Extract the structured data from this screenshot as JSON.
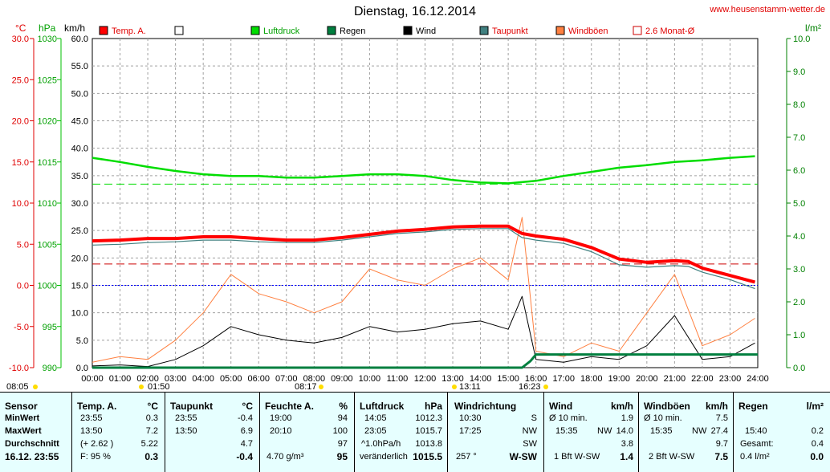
{
  "page": {
    "title": "Dienstag, 16.12.2014",
    "site": "www.heusenstamm-wetter.de",
    "colors": {
      "temp": "#ff0000",
      "pressure": "#00dd00",
      "rain": "#007f3f",
      "wind": "#000000",
      "dewpoint": "#408080",
      "gusts": "#ff8040",
      "avg2m": "#cc0000",
      "dotted_zero": "#0000ff",
      "table_bg": "#e6ffff",
      "sunrise": "#ffdd00"
    }
  },
  "axes": {
    "temp_unit": "°C",
    "pressure_unit": "hPa",
    "wind_unit": "km/h",
    "rain_unit": "l/m²",
    "temp_ticks": [
      "30.0",
      "25.0",
      "20.0",
      "15.0",
      "10.0",
      "5.0",
      "0.0",
      "-5.0",
      "-10.0"
    ],
    "pressure_ticks": [
      "1030",
      "1025",
      "1020",
      "1015",
      "1010",
      "1005",
      "1000",
      "995",
      "990"
    ],
    "wind_ticks": [
      "60.0",
      "55.0",
      "50.0",
      "45.0",
      "40.0",
      "35.0",
      "30.0",
      "25.0",
      "20.0",
      "15.0",
      "10.0",
      "5.0",
      "0.0"
    ],
    "rain_ticks": [
      "10.0",
      "9.0",
      "8.0",
      "7.0",
      "6.0",
      "5.0",
      "4.0",
      "3.0",
      "2.0",
      "1.0",
      "0.0"
    ],
    "x_ticks": [
      "00:00",
      "01:00",
      "02:00",
      "03:00",
      "04:00",
      "05:00",
      "06:00",
      "07:00",
      "08:00",
      "09:00",
      "10:00",
      "11:00",
      "12:00",
      "13:00",
      "14:00",
      "15:00",
      "16:00",
      "17:00",
      "18:00",
      "19:00",
      "20:00",
      "21:00",
      "22:00",
      "23:00",
      "24:00"
    ]
  },
  "legend": {
    "temp": "Temp. A.",
    "empty": "",
    "pressure": "Luftdruck",
    "rain": "Regen",
    "wind": "Wind",
    "dewpoint": "Taupunkt",
    "gusts": "Windböen",
    "avg2m": "2.6 Monat-Ø"
  },
  "markers": {
    "m1": "08:05",
    "m2": "01:50",
    "m3": "08:17",
    "m4": "13:11",
    "m5": "16:23"
  },
  "chart_data": {
    "type": "line",
    "x_unit": "hour",
    "x_range": [
      0,
      24
    ],
    "temp_range": [
      -10,
      30
    ],
    "wind_range": [
      0,
      60
    ],
    "pressure_range": [
      990,
      1030
    ],
    "rain_range": [
      0,
      10
    ],
    "temp_avg_2m": 2.6,
    "pressure_ref": 1012.3,
    "series": [
      {
        "name": "Temp. A.",
        "unit": "°C",
        "x": [
          0,
          1,
          2,
          3,
          4,
          5,
          6,
          7,
          8,
          9,
          10,
          11,
          12,
          13,
          14,
          15,
          15.5,
          16,
          17,
          18,
          19,
          20,
          21,
          21.5,
          22,
          23,
          23.9
        ],
        "y": [
          5.4,
          5.5,
          5.7,
          5.7,
          5.9,
          5.9,
          5.7,
          5.5,
          5.5,
          5.8,
          6.2,
          6.6,
          6.8,
          7.1,
          7.2,
          7.2,
          6.3,
          6.0,
          5.6,
          4.6,
          3.2,
          2.8,
          3.0,
          2.9,
          2.1,
          1.2,
          0.4
        ]
      },
      {
        "name": "Taupunkt",
        "unit": "°C",
        "x": [
          0,
          1,
          2,
          3,
          4,
          5,
          6,
          7,
          8,
          9,
          10,
          11,
          12,
          13,
          14,
          15,
          15.5,
          16,
          17,
          18,
          19,
          20,
          21,
          21.5,
          22,
          23,
          23.9
        ],
        "y": [
          4.9,
          5.0,
          5.2,
          5.3,
          5.5,
          5.5,
          5.3,
          5.2,
          5.2,
          5.5,
          5.9,
          6.3,
          6.5,
          6.8,
          6.9,
          6.9,
          5.8,
          5.5,
          5.1,
          4.1,
          2.5,
          2.2,
          2.4,
          2.3,
          1.6,
          0.7,
          -0.4
        ]
      },
      {
        "name": "Luftdruck",
        "unit": "hPa",
        "x": [
          0,
          1,
          2,
          3,
          4,
          5,
          6,
          7,
          8,
          9,
          10,
          11,
          12,
          13,
          14,
          15,
          16,
          17,
          18,
          19,
          20,
          21,
          22,
          23,
          23.9
        ],
        "y": [
          1015.5,
          1015.0,
          1014.4,
          1013.9,
          1013.5,
          1013.3,
          1013.3,
          1013.1,
          1013.1,
          1013.3,
          1013.5,
          1013.5,
          1013.3,
          1012.8,
          1012.5,
          1012.4,
          1012.7,
          1013.3,
          1013.8,
          1014.3,
          1014.6,
          1015.0,
          1015.2,
          1015.5,
          1015.7
        ]
      },
      {
        "name": "Wind",
        "unit": "km/h",
        "x": [
          0,
          1,
          2,
          3,
          4,
          5,
          6,
          7,
          8,
          9,
          10,
          11,
          12,
          13,
          14,
          15,
          15.5,
          16,
          17,
          18,
          19,
          20,
          21,
          22,
          23,
          23.9
        ],
        "y": [
          0.3,
          0.5,
          0.2,
          1.5,
          4.0,
          7.5,
          6.0,
          5.0,
          4.5,
          5.5,
          7.5,
          6.5,
          7.0,
          8.0,
          8.5,
          7.0,
          13.0,
          1.5,
          1.0,
          2.0,
          1.5,
          4.0,
          9.5,
          1.5,
          2.0,
          4.5
        ]
      },
      {
        "name": "Windböen",
        "unit": "km/h",
        "x": [
          0,
          1,
          2,
          3,
          4,
          5,
          6,
          7,
          8,
          9,
          10,
          11,
          12,
          13,
          14,
          15,
          15.5,
          16,
          17,
          18,
          19,
          20,
          21,
          22,
          23,
          23.9
        ],
        "y": [
          1.0,
          2.0,
          1.5,
          5.0,
          10.0,
          17.0,
          13.5,
          12.0,
          10.0,
          12.0,
          18.0,
          16.0,
          15.0,
          18.0,
          20.0,
          16.0,
          27.4,
          3.0,
          2.0,
          4.5,
          3.0,
          10.0,
          17.0,
          4.0,
          6.0,
          9.0
        ]
      },
      {
        "name": "Regen",
        "unit": "l/m²",
        "x": [
          0,
          15.5,
          15.8,
          16.0,
          20,
          24
        ],
        "y": [
          0,
          0,
          0.2,
          0.4,
          0.4,
          0.4
        ]
      }
    ]
  },
  "table": {
    "sensor": {
      "h": "Sensor",
      "min": "MinWert",
      "max": "MaxWert",
      "avg": "Durchschnitt",
      "now": "16.12. 23:55"
    },
    "temp": {
      "h1": "Temp. A.",
      "h2": "°C",
      "min_t": "23:55",
      "min_v": "0.3",
      "max_t": "13:50",
      "max_v": "7.2",
      "avg_t": "(+ 2.62 )",
      "avg_v": "5.22",
      "now_t": "F: 95 %",
      "now_v": "0.3"
    },
    "dew": {
      "h1": "Taupunkt",
      "h2": "°C",
      "min_t": "23:55",
      "min_v": "-0.4",
      "max_t": "13:50",
      "max_v": "6.9",
      "avg_v": "4.7",
      "now_v": "-0.4"
    },
    "hum": {
      "h1": "Feuchte A.",
      "h2": "%",
      "min_t": "19:00",
      "min_v": "94",
      "max_t": "20:10",
      "max_v": "100",
      "avg_v": "97",
      "now_t": "4.70 g/m³",
      "now_v": "95"
    },
    "press": {
      "h1": "Luftdruck",
      "h2": "hPa",
      "min_t": "14:05",
      "min_v": "1012.3",
      "max_t": "23:05",
      "max_v": "1015.7",
      "avg_t": "^1.0hPa/h",
      "avg_v": "1013.8",
      "now_t": "veränderlich",
      "now_v": "1015.5"
    },
    "wdir": {
      "h1": "Windrichtung",
      "min_t": "10:30",
      "min_v": "S",
      "max_t": "17:25",
      "max_v": "NW",
      "avg_v": "SW",
      "now_t": "257 °",
      "now_v": "W-SW"
    },
    "wind": {
      "h1": "Wind",
      "h2": "km/h",
      "min_t": "Ø 10 min.",
      "min_v": "1.9",
      "max_t": "15:35",
      "max_d": "NW",
      "max_v": "14.0",
      "avg_v": "3.8",
      "now_t": "1 Bft W-SW",
      "now_v": "1.4"
    },
    "gust": {
      "h1": "Windböen",
      "h2": "km/h",
      "min_t": "Ø 10 min.",
      "min_v": "7.5",
      "max_t": "15:35",
      "max_d": "NW",
      "max_v": "27.4",
      "avg_v": "9.7",
      "now_t": "2 Bft W-SW",
      "now_v": "7.5"
    },
    "rain": {
      "h1": "Regen",
      "h2": "l/m²",
      "max_t": "15:40",
      "max_v": "0.2",
      "avg_t": "Gesamt:",
      "avg_v": "0.4",
      "now_t": "0.4 l/m²",
      "now_v": "0.0"
    }
  }
}
